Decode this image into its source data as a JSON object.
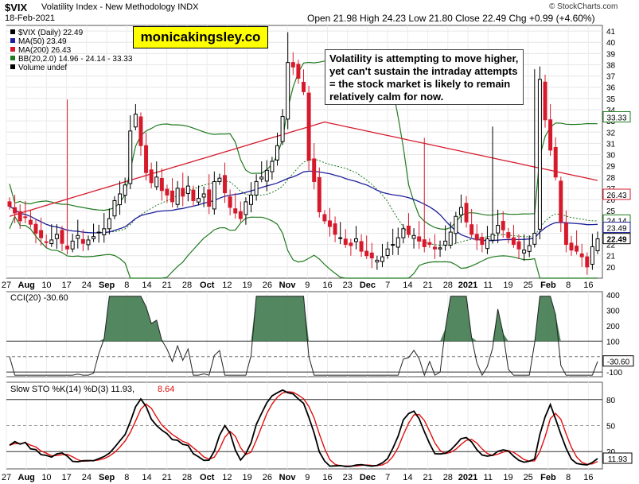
{
  "header": {
    "title": "$VIX",
    "title_full": "Volatility Index - New Methodology  INDX",
    "date": "18-Feb-2021",
    "ohlc": "Open 21.98  High 24.23  Low 21.80  Close 22.49  Chg +0.99 (+4.60%)",
    "source": "© StockCharts.com"
  },
  "brand": "monicakingsley.co",
  "annotation": "Volatility is attempting to move higher, yet can't sustain the intraday attempts = the stock market is likely to remain relatively calm for now.",
  "legend": [
    {
      "text": "$VIX (Daily) 22.49",
      "color": "#000000"
    },
    {
      "text": "MA(50) 23.49",
      "color": "#1f1f9c"
    },
    {
      "text": "MA(200) 26.43",
      "color": "#d61a2c"
    },
    {
      "text": "BB(20,2.0) 14.96 - 24.14 - 33.33",
      "color": "#1f7a1f"
    },
    {
      "text": "Volume undef",
      "color": "#000000"
    }
  ],
  "price_ticks": [
    "41",
    "40",
    "39",
    "38",
    "37",
    "36",
    "35",
    "34",
    "33",
    "32",
    "31",
    "30",
    "29",
    "28",
    "27",
    "26",
    "25",
    "24",
    "23",
    "22",
    "21",
    "20"
  ],
  "price_badges": [
    {
      "text": "33.33",
      "value": 33.33,
      "color": "#1f7a1f"
    },
    {
      "text": "26.43",
      "value": 26.43,
      "color": "#d61a2c"
    },
    {
      "text": "24.14",
      "value": 24.14,
      "color": "#1f7a1f"
    },
    {
      "text": "23.49",
      "value": 23.49,
      "color": "#1f1f9c"
    },
    {
      "text": "22.49",
      "value": 22.49,
      "color": "#000000"
    }
  ],
  "date_labels": [
    "27",
    "Aug",
    "10",
    "17",
    "24",
    "Sep",
    "8",
    "14",
    "21",
    "28",
    "Oct",
    "12",
    "19",
    "26",
    "Nov",
    "9",
    "16",
    "23",
    "Dec",
    "7",
    "14",
    "21",
    "28",
    "2021",
    "11",
    "19",
    "25",
    "Feb",
    "8",
    "16"
  ],
  "cci_panel": {
    "label": "CCI(20) -30.60",
    "ticks": [
      "400",
      "300",
      "200",
      "100",
      "-100"
    ],
    "badge": "-30.60"
  },
  "sto_panel": {
    "label_k": "Slow STO %K(14) %D(3) 11.93,",
    "label_d": "8.64",
    "ticks": [
      "80",
      "50",
      "20"
    ],
    "badge": "11.93"
  },
  "colors": {
    "up": "#000000",
    "down": "#d61a2c",
    "ma50": "#1f1f9c",
    "ma200": "#d61a2c",
    "bb": "#1f7a1f",
    "cci_fill": "#3f7a4f",
    "sto_k": "#000000",
    "sto_d": "#e01010"
  },
  "chart_data": [
    {
      "type": "candlestick",
      "title": "$VIX Volatility Index - New Methodology INDX",
      "ylim": [
        19,
        41.5
      ],
      "x_start_label": "27 Jul 2020",
      "x_end_label": "18 Feb 2021",
      "close": [
        25.4,
        24.8,
        24.1,
        24.4,
        23.8,
        23.0,
        22.6,
        22.2,
        22.4,
        22.9,
        22.1,
        21.6,
        22.3,
        22.8,
        22.1,
        22.4,
        22.7,
        23.1,
        23.4,
        24.3,
        25.9,
        26.5,
        27.3,
        32.1,
        33.6,
        30.8,
        28.4,
        27.5,
        28.0,
        26.8,
        26.4,
        25.8,
        27.0,
        26.3,
        27.2,
        25.9,
        26.1,
        26.5,
        25.4,
        27.6,
        27.9,
        26.6,
        25.3,
        24.8,
        24.3,
        25.8,
        26.4,
        27.6,
        28.0,
        28.6,
        29.4,
        30.8,
        33.4,
        38.2,
        37.8,
        36.8,
        35.6,
        29.5,
        27.6,
        24.9,
        24.1,
        23.6,
        22.9,
        22.6,
        22.0,
        21.9,
        22.5,
        21.4,
        21.0,
        20.8,
        20.6,
        20.9,
        21.6,
        22.0,
        22.6,
        23.4,
        22.9,
        22.8,
        22.3,
        21.8,
        22.0,
        21.6,
        21.7,
        22.3,
        23.1,
        24.5,
        25.3,
        24.0,
        22.9,
        22.4,
        22.0,
        22.5,
        22.9,
        23.7,
        23.3,
        22.6,
        22.0,
        21.6,
        21.5,
        21.9,
        23.0,
        36.7,
        33.1,
        30.4,
        28.0,
        24.0,
        22.0,
        21.5,
        21.4,
        20.9,
        20.0,
        21.8,
        22.5
      ],
      "ma50_end": 23.49,
      "ma200_end": 26.43,
      "bb_end": [
        14.96,
        24.14,
        33.33
      ]
    },
    {
      "type": "line",
      "title": "CCI(20)",
      "ylim": [
        -130,
        420
      ],
      "last": -30.6
    },
    {
      "type": "line",
      "title": "Slow STO %K(14) %D(3)",
      "ylim": [
        0,
        100
      ],
      "k_last": 11.93,
      "d_last": 8.64
    }
  ]
}
